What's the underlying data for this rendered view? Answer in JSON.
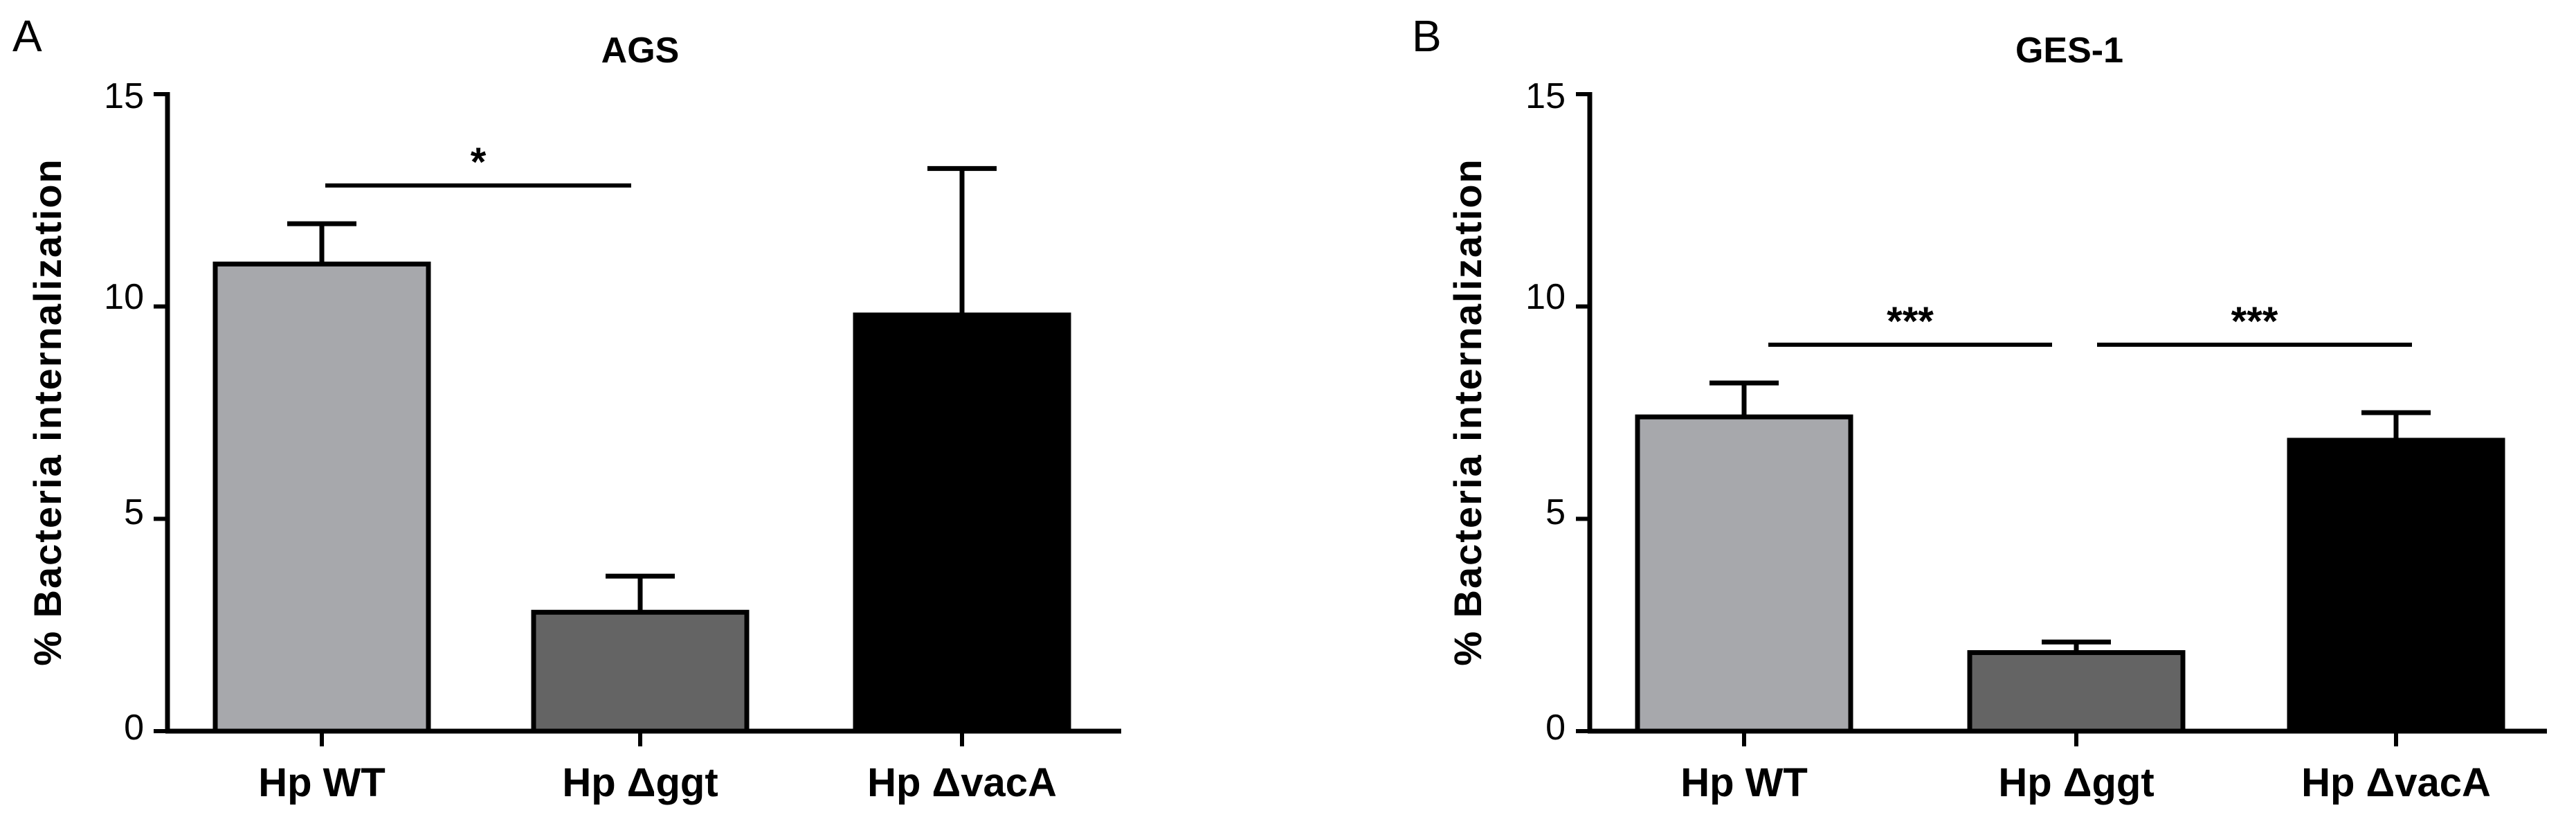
{
  "chart_data": [
    {
      "type": "bar",
      "panel": "A",
      "title": "AGS",
      "xlabel": "",
      "ylabel": "% Bacteria internalization",
      "ylim": [
        0,
        15
      ],
      "yticks": [
        "0",
        "5",
        "10",
        "15"
      ],
      "categories": [
        "Hp WT",
        "Hp Δggt",
        "Hp ΔvacA"
      ],
      "values": [
        11.0,
        2.8,
        9.8
      ],
      "errors": [
        0.95,
        0.85,
        3.45
      ],
      "bar_colors": [
        "#a7a8ac",
        "#646464",
        "#000000"
      ],
      "significance": [
        {
          "from": 0,
          "to": 1,
          "label": "*",
          "level": 12.85
        }
      ]
    },
    {
      "type": "bar",
      "panel": "B",
      "title": "GES-1",
      "xlabel": "",
      "ylabel": "% Bacteria internalization",
      "ylim": [
        0,
        15
      ],
      "yticks": [
        "0",
        "5",
        "10",
        "15"
      ],
      "categories": [
        "Hp WT",
        "Hp Δggt",
        "Hp ΔvacA"
      ],
      "values": [
        7.4,
        1.85,
        6.85
      ],
      "errors": [
        0.8,
        0.25,
        0.65
      ],
      "bar_colors": [
        "#a7a8ac",
        "#646464",
        "#000000"
      ],
      "significance": [
        {
          "from": 0,
          "to": 1,
          "label": "***",
          "level": 9.1
        },
        {
          "from": 1,
          "to": 2,
          "label": "***",
          "level": 9.1
        }
      ]
    }
  ]
}
